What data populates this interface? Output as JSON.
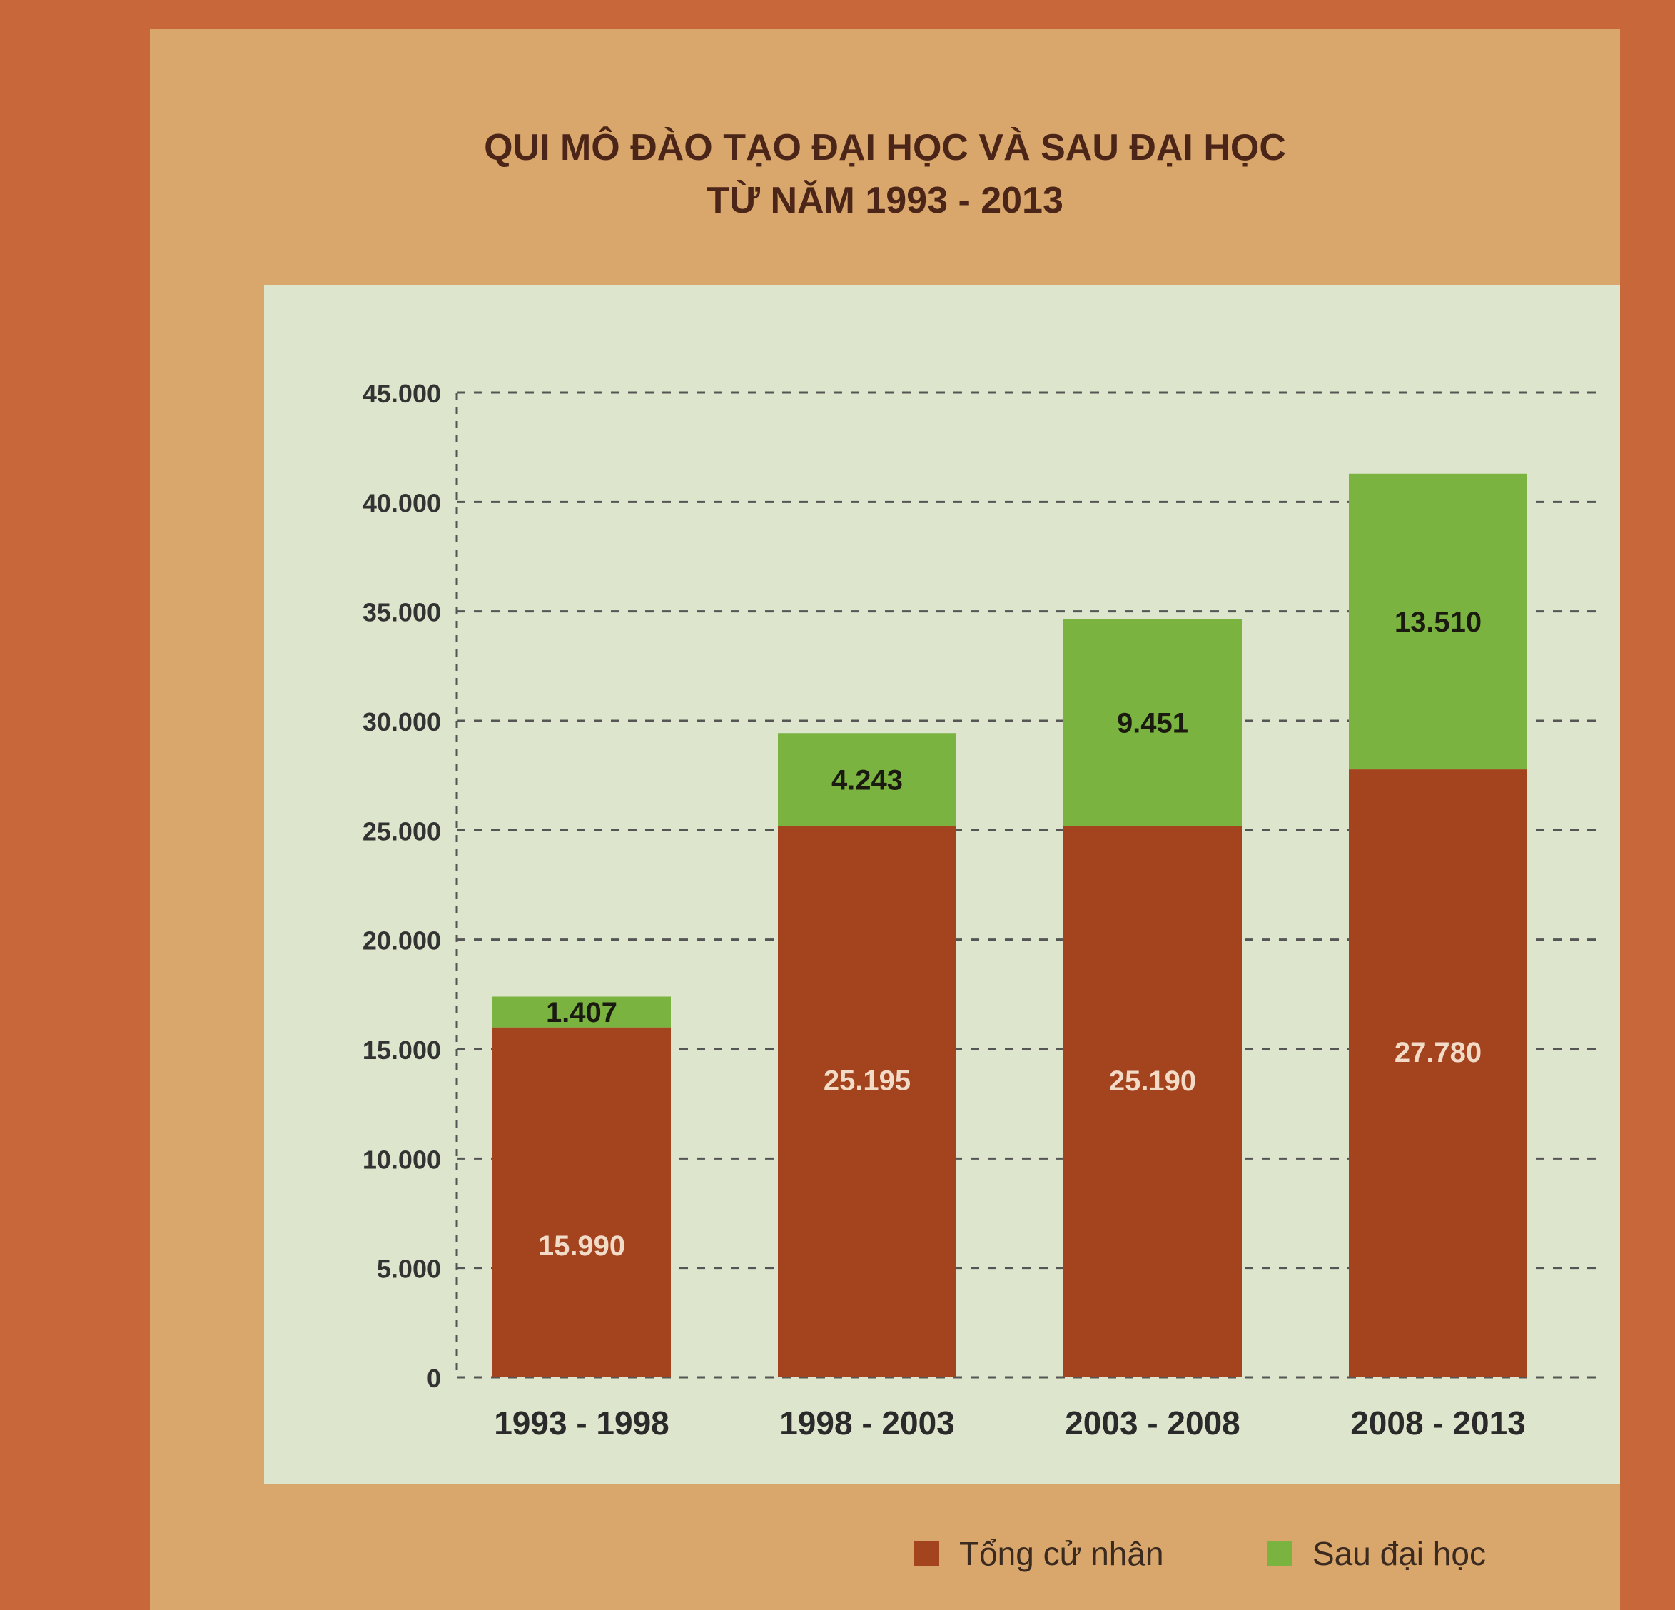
{
  "chart_data": {
    "type": "bar",
    "stacked": true,
    "title": "QUI MÔ ĐÀO TẠO ĐẠI HỌC VÀ SAU ĐẠI HỌC",
    "subtitle": "TỪ NĂM 1993 - 2013",
    "categories": [
      "1993 - 1998",
      "1998 - 2003",
      "2003 - 2008",
      "2008 - 2013"
    ],
    "series": [
      {
        "name": "Tổng cử nhân",
        "values": [
          15990,
          25195,
          25190,
          27780
        ],
        "labels": [
          "15.990",
          "25.195",
          "25.190",
          "27.780"
        ],
        "color": "#a3441f",
        "label_color": "#f2dcc8"
      },
      {
        "name": "Sau đại học",
        "values": [
          1407,
          4243,
          9451,
          13510
        ],
        "labels": [
          "1.407",
          "4.243",
          "9.451",
          "13.510"
        ],
        "color": "#7ab340",
        "label_color": "#1a1a10"
      }
    ],
    "yticks": [
      0,
      5000,
      10000,
      15000,
      20000,
      25000,
      30000,
      35000,
      40000,
      45000
    ],
    "ytick_labels": [
      "0",
      "5.000",
      "10.000",
      "15.000",
      "20.000",
      "25.000",
      "30.000",
      "35.000",
      "40.000",
      "45.000"
    ],
    "ylim": [
      0,
      45000
    ],
    "grid": true,
    "legend": "bottom-right"
  },
  "colors": {
    "background": "#c8683a",
    "poster": "#d9a66c",
    "panel": "#dde6cc",
    "grid": "#555555",
    "title": "#4a2518"
  }
}
